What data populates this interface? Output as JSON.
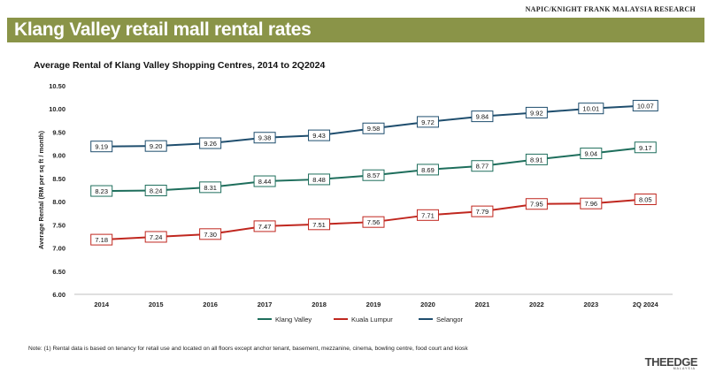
{
  "header": {
    "source": "NAPIC/KNIGHT FRANK MALAYSIA RESEARCH",
    "title": "Klang Valley retail mall rental rates"
  },
  "chart_data": {
    "type": "line",
    "title": "Average Rental of Klang Valley Shopping Centres, 2014 to 2Q2024",
    "xlabel": "",
    "ylabel": "Average Rental (RM per sq ft / month)",
    "categories": [
      "2014",
      "2015",
      "2016",
      "2017",
      "2018",
      "2019",
      "2020",
      "2021",
      "2022",
      "2023",
      "2Q 2024"
    ],
    "ylim": [
      6.0,
      10.5
    ],
    "yticks": [
      "6.00",
      "6.50",
      "7.00",
      "7.50",
      "8.00",
      "8.50",
      "9.00",
      "9.50",
      "10.00",
      "10.50"
    ],
    "grid": false,
    "legend_position": "bottom",
    "series": [
      {
        "name": "Klang Valley",
        "color": "#1e6e5c",
        "values": [
          8.23,
          8.24,
          8.31,
          8.44,
          8.48,
          8.57,
          8.69,
          8.77,
          8.91,
          9.04,
          9.17
        ],
        "labels": [
          "8.23",
          "8.24",
          "8.31",
          "8.44",
          "8.48",
          "8.57",
          "8.69",
          "8.77",
          "8.91",
          "9.04",
          "9.17"
        ]
      },
      {
        "name": "Kuala Lumpur",
        "color": "#c0271f",
        "values": [
          7.18,
          7.24,
          7.3,
          7.47,
          7.51,
          7.56,
          7.71,
          7.79,
          7.95,
          7.96,
          8.05
        ],
        "labels": [
          "7.18",
          "7.24",
          "7.30",
          "7.47",
          "7.51",
          "7.56",
          "7.71",
          "7.79",
          "7.95",
          "7.96",
          "8.05"
        ]
      },
      {
        "name": "Selangor",
        "color": "#1f4e6e",
        "values": [
          9.19,
          9.2,
          9.26,
          9.38,
          9.43,
          9.58,
          9.72,
          9.84,
          9.92,
          10.01,
          10.07
        ],
        "labels": [
          "9.19",
          "9.20",
          "9.26",
          "9.38",
          "9.43",
          "9.58",
          "9.72",
          "9.84",
          "9.92",
          "10.01",
          "10.07"
        ]
      }
    ]
  },
  "footer": {
    "note": "Note: (1) Rental data is based on tenancy for retail use and located on all floors except anchor tenant, basement, mezzanine, cinema, bowling centre, food court and kiosk",
    "logo": "THEEDGE",
    "logo_sub": "MALAYSIA"
  }
}
